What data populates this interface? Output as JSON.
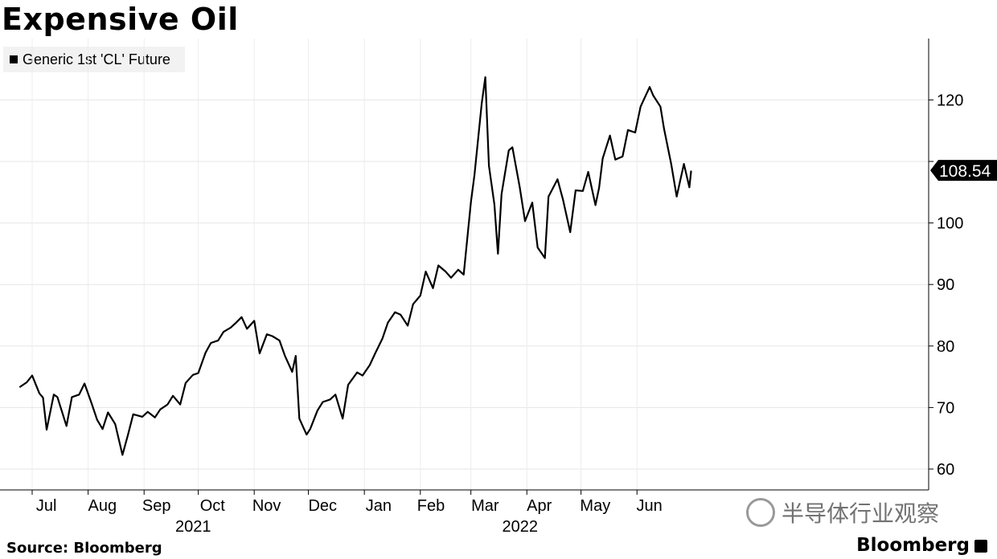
{
  "title": "Expensive Oil",
  "source": "Source: Bloomberg",
  "brand": "Bloomberg",
  "watermark": "半导体行业观察",
  "chart_data": {
    "type": "line",
    "title": "Expensive Oil",
    "xlabel": "",
    "ylabel": "",
    "ylim": [
      56,
      125
    ],
    "yticks": [
      60,
      70,
      80,
      90,
      100,
      120
    ],
    "y_axis_side": "right",
    "grid": true,
    "legend_position": "top-left",
    "last_value_label": "108.54",
    "x_month_labels": [
      "Jul",
      "Aug",
      "Sep",
      "Oct",
      "Nov",
      "Dec",
      "Jan",
      "Feb",
      "Mar",
      "Apr",
      "May",
      "Jun"
    ],
    "x_year_labels": [
      {
        "label": "2021",
        "month": "Oct"
      },
      {
        "label": "2022",
        "month": "Apr"
      }
    ],
    "series": [
      {
        "name": "Generic 1st 'CL' Future",
        "color": "#000000",
        "x": [
          "2021-06-24",
          "2021-06-28",
          "2021-07-01",
          "2021-07-05",
          "2021-07-07",
          "2021-07-09",
          "2021-07-13",
          "2021-07-15",
          "2021-07-20",
          "2021-07-23",
          "2021-07-27",
          "2021-07-30",
          "2021-08-03",
          "2021-08-06",
          "2021-08-09",
          "2021-08-12",
          "2021-08-16",
          "2021-08-20",
          "2021-08-23",
          "2021-08-26",
          "2021-08-31",
          "2021-09-03",
          "2021-09-07",
          "2021-09-10",
          "2021-09-14",
          "2021-09-17",
          "2021-09-21",
          "2021-09-24",
          "2021-09-28",
          "2021-10-01",
          "2021-10-05",
          "2021-10-08",
          "2021-10-12",
          "2021-10-15",
          "2021-10-19",
          "2021-10-22",
          "2021-10-25",
          "2021-10-28",
          "2021-11-01",
          "2021-11-04",
          "2021-11-08",
          "2021-11-11",
          "2021-11-15",
          "2021-11-18",
          "2021-11-22",
          "2021-11-24",
          "2021-11-26",
          "2021-11-30",
          "2021-12-02",
          "2021-12-06",
          "2021-12-09",
          "2021-12-13",
          "2021-12-16",
          "2021-12-20",
          "2021-12-23",
          "2021-12-28",
          "2021-12-31",
          "2022-01-04",
          "2022-01-07",
          "2022-01-11",
          "2022-01-14",
          "2022-01-18",
          "2022-01-21",
          "2022-01-25",
          "2022-01-28",
          "2022-02-01",
          "2022-02-04",
          "2022-02-08",
          "2022-02-11",
          "2022-02-15",
          "2022-02-18",
          "2022-02-22",
          "2022-02-25",
          "2022-03-01",
          "2022-03-03",
          "2022-03-07",
          "2022-03-09",
          "2022-03-11",
          "2022-03-14",
          "2022-03-16",
          "2022-03-18",
          "2022-03-22",
          "2022-03-24",
          "2022-03-28",
          "2022-03-31",
          "2022-04-04",
          "2022-04-07",
          "2022-04-11",
          "2022-04-13",
          "2022-04-18",
          "2022-04-21",
          "2022-04-25",
          "2022-04-28",
          "2022-05-02",
          "2022-05-05",
          "2022-05-09",
          "2022-05-11",
          "2022-05-13",
          "2022-05-17",
          "2022-05-20",
          "2022-05-24",
          "2022-05-27",
          "2022-05-31",
          "2022-06-03",
          "2022-06-08",
          "2022-06-10",
          "2022-06-14",
          "2022-06-16",
          "2022-06-20",
          "2022-06-23",
          "2022-06-27",
          "2022-06-30",
          "2022-07-01"
        ],
        "values": [
          73.3,
          74.1,
          75.2,
          72.3,
          71.6,
          66.4,
          72.1,
          71.7,
          67.0,
          71.7,
          72.1,
          73.9,
          70.6,
          68.0,
          66.5,
          69.2,
          67.3,
          62.3,
          65.5,
          68.9,
          68.5,
          69.3,
          68.4,
          69.7,
          70.5,
          71.9,
          70.5,
          74.0,
          75.3,
          75.6,
          78.9,
          80.5,
          80.9,
          82.3,
          83.0,
          83.8,
          84.7,
          82.8,
          84.1,
          78.8,
          81.9,
          81.6,
          80.9,
          78.4,
          75.8,
          78.4,
          68.2,
          65.6,
          66.5,
          69.5,
          70.9,
          71.3,
          72.1,
          68.2,
          73.7,
          75.7,
          75.2,
          76.9,
          78.8,
          81.2,
          83.8,
          85.5,
          85.1,
          83.3,
          86.8,
          88.2,
          92.1,
          89.4,
          93.1,
          92.1,
          91.1,
          92.4,
          91.6,
          103.4,
          107.8,
          119.4,
          123.7,
          109.3,
          103.0,
          95.0,
          104.7,
          111.8,
          112.3,
          105.9,
          100.3,
          103.3,
          96.0,
          94.3,
          104.3,
          107.1,
          103.8,
          98.5,
          105.3,
          105.2,
          108.3,
          102.9,
          105.7,
          110.5,
          114.2,
          110.3,
          110.8,
          115.1,
          114.7,
          118.9,
          122.1,
          120.7,
          118.9,
          115.3,
          109.5,
          104.3,
          109.6,
          105.8,
          108.5
        ]
      }
    ]
  }
}
